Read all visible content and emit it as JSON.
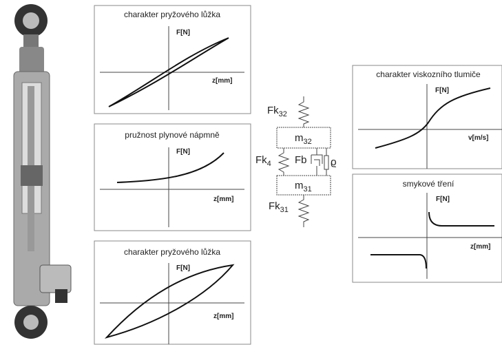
{
  "panels": [
    {
      "title": "charakter pryžového lůžka",
      "y_label": "F[N]",
      "x_label": "z[mm]"
    },
    {
      "title": "pružnost plynové nápmně",
      "y_label": "F[N]",
      "x_label": "z[mm]"
    },
    {
      "title": "charakter pryžového lůžka",
      "y_label": "F[N]",
      "x_label": "z[mm]"
    },
    {
      "title": "charakter viskozního tlumiče",
      "y_label": "F[N]",
      "x_label": "v[m/s]"
    },
    {
      "title": "smykové tření",
      "y_label": "F[N]",
      "x_label": "z[mm]"
    }
  ],
  "model": {
    "spring_top": {
      "main": "Fk",
      "sub": "32"
    },
    "mass_top": {
      "main": "m",
      "sub": "32"
    },
    "spring_side": {
      "main": "Fk",
      "sub": "4"
    },
    "damper": "Fb",
    "friction": "ϱ",
    "mass_bottom": {
      "main": "m",
      "sub": "31"
    },
    "spring_bottom": {
      "main": "Fk",
      "sub": "31"
    }
  }
}
